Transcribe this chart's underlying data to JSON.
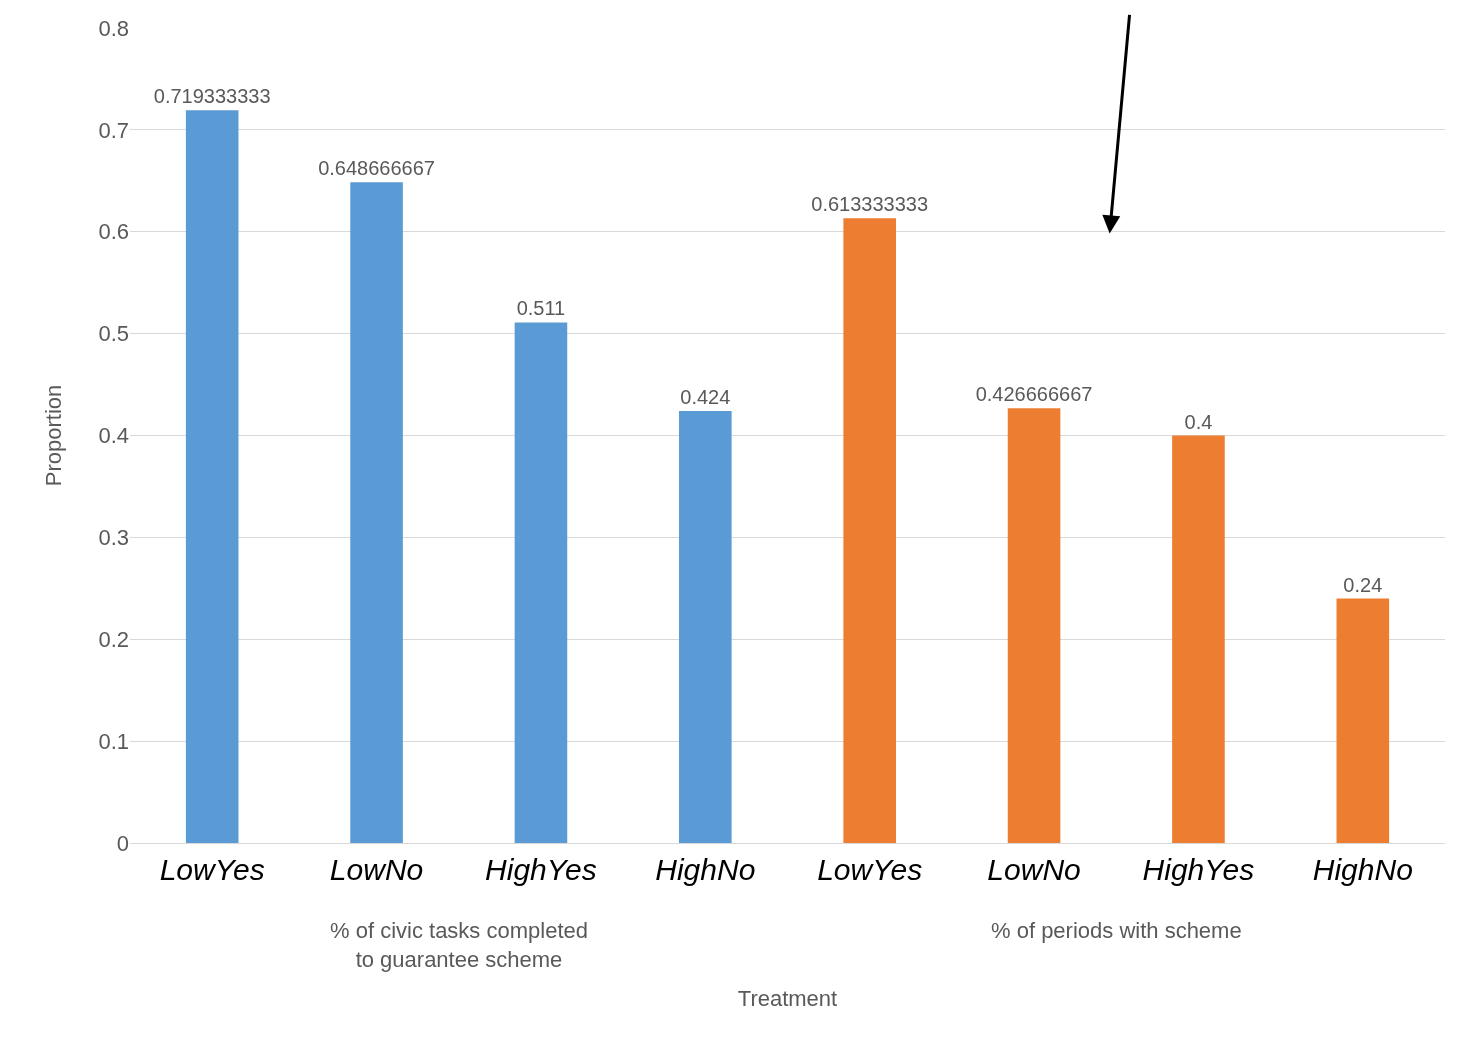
{
  "chart_data": {
    "type": "bar",
    "xlabel": "Treatment",
    "ylabel": "Proportion",
    "categories": [
      "LowYes",
      "LowNo",
      "HighYes",
      "HighNo",
      "LowYes",
      "LowNo",
      "HighYes",
      "HighNo"
    ],
    "values": [
      0.719333333,
      0.648666667,
      0.511,
      0.424,
      0.613333333,
      0.426666667,
      0.4,
      0.24
    ],
    "colors": [
      "#5b9bd5",
      "#5b9bd5",
      "#5b9bd5",
      "#5b9bd5",
      "#ed7d31",
      "#ed7d31",
      "#ed7d31",
      "#ed7d31"
    ],
    "data_labels": true,
    "ylim": [
      0,
      0.8
    ],
    "yticks": [
      0,
      0.1,
      0.2,
      0.3,
      0.4,
      0.5,
      0.6,
      0.7,
      0.8
    ],
    "grid": "y",
    "legend": false,
    "annotations": [
      "% of civic tasks completed\nto guarantee scheme",
      "% of periods with scheme"
    ]
  }
}
